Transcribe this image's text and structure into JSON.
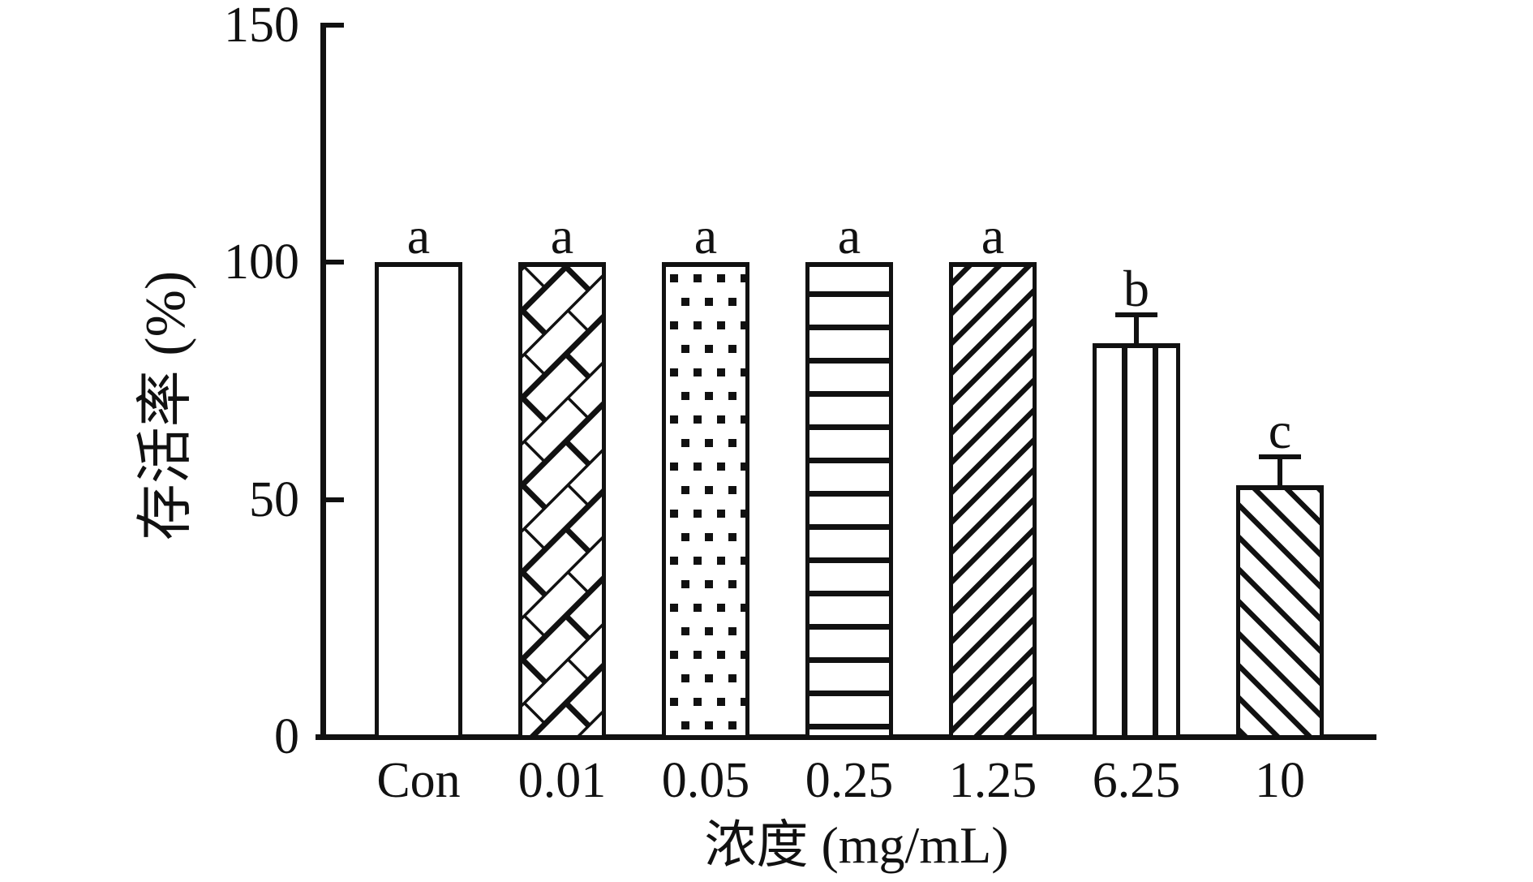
{
  "chart_data": {
    "type": "bar",
    "title": "",
    "xlabel": "浓度 (mg/mL)",
    "ylabel": "存活率 (%)",
    "ylim": [
      0,
      150
    ],
    "yticks": [
      0,
      50,
      100,
      150
    ],
    "grid": false,
    "legend": false,
    "categories": [
      "Con",
      "0.01",
      "0.05",
      "0.25",
      "1.25",
      "6.25",
      "10"
    ],
    "values": [
      100,
      100,
      100,
      100,
      100,
      83,
      53
    ],
    "errors_plus": [
      0,
      0,
      0,
      0,
      0,
      6,
      6
    ],
    "sig_letters": [
      "a",
      "a",
      "a",
      "a",
      "a",
      "b",
      "c"
    ],
    "bar_patterns": [
      "plain",
      "diagonal-brick",
      "dots",
      "horizontal-lines",
      "diagonal-up",
      "vertical-lines",
      "diagonal-down"
    ],
    "bar_fill": "#ffffff",
    "line_color": "#111111"
  }
}
